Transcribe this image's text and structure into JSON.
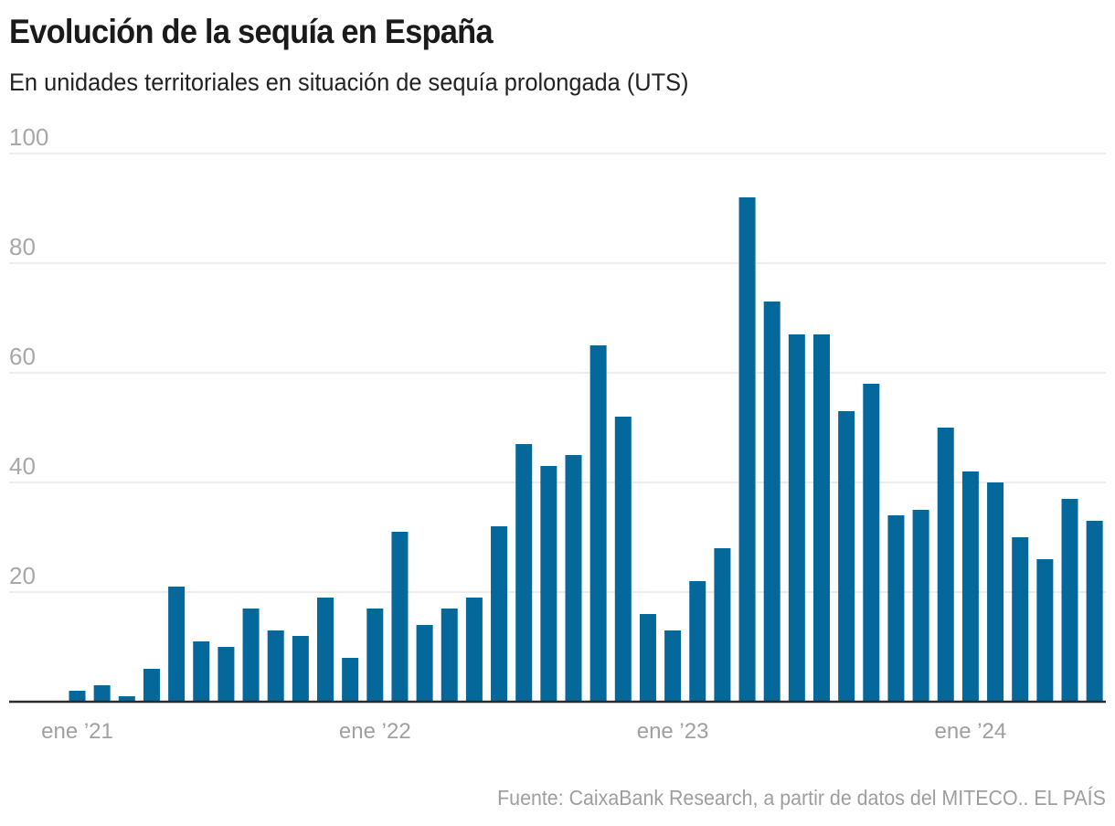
{
  "chart_data": {
    "type": "bar",
    "title": "Evolución de la sequía en España",
    "subtitle": "En unidades territoriales en situación de sequía prolongada (UTS)",
    "xlabel": "",
    "ylabel": "",
    "ylim": [
      0,
      100
    ],
    "yticks": [
      20,
      40,
      60,
      80,
      100
    ],
    "ytick_labels": [
      "20",
      "40",
      "60",
      "80",
      "100"
    ],
    "grid": true,
    "bar_color": "#05689b",
    "categories": [
      "2021-01",
      "2021-02",
      "2021-03",
      "2021-04",
      "2021-05",
      "2021-06",
      "2021-07",
      "2021-08",
      "2021-09",
      "2021-10",
      "2021-11",
      "2021-12",
      "2022-01",
      "2022-02",
      "2022-03",
      "2022-04",
      "2022-05",
      "2022-06",
      "2022-07",
      "2022-08",
      "2022-09",
      "2022-10",
      "2022-11",
      "2022-12",
      "2023-01",
      "2023-02",
      "2023-03",
      "2023-04",
      "2023-05",
      "2023-06",
      "2023-07",
      "2023-08",
      "2023-09",
      "2023-10",
      "2023-11",
      "2023-12",
      "2024-01",
      "2024-02",
      "2024-03",
      "2024-04",
      "2024-05",
      "2024-06"
    ],
    "values": [
      2,
      3,
      1,
      6,
      21,
      11,
      10,
      17,
      13,
      12,
      19,
      8,
      17,
      31,
      14,
      17,
      19,
      32,
      47,
      43,
      45,
      65,
      52,
      16,
      13,
      22,
      28,
      92,
      73,
      67,
      67,
      53,
      58,
      34,
      35,
      50,
      42,
      40,
      30,
      26,
      37,
      33
    ],
    "xtick_labels": [
      {
        "index": 0,
        "label": "ene ’21"
      },
      {
        "index": 12,
        "label": "ene ’22"
      },
      {
        "index": 24,
        "label": "ene ’23"
      },
      {
        "index": 36,
        "label": "ene ’24"
      }
    ],
    "source": "Fuente: CaixaBank Research, a partir de datos del MITECO.. EL PAÍS"
  }
}
